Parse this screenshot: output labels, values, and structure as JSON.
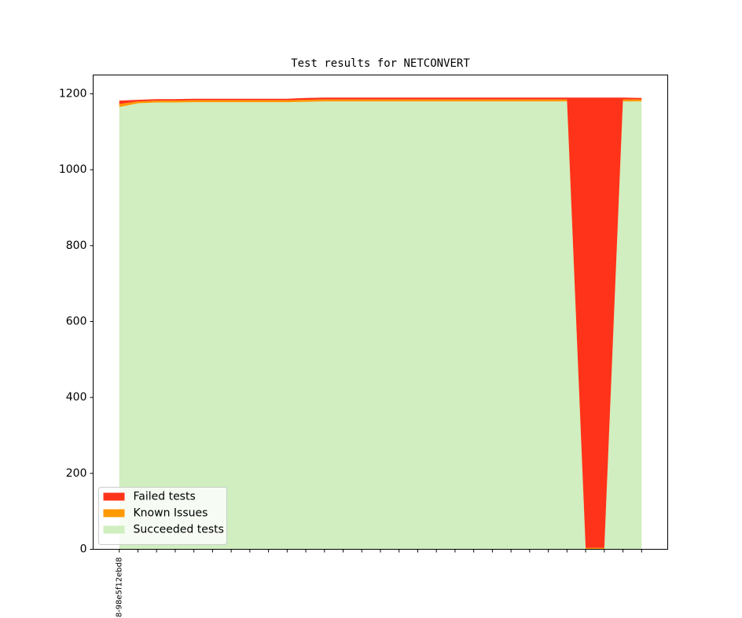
{
  "chart_data": {
    "type": "stacked_area",
    "title": "Test results for NETCONVERT",
    "categories": [
      "8-98e5f12ebd8",
      null,
      null,
      null,
      null,
      null,
      null,
      null,
      null,
      null,
      null,
      null,
      null,
      null,
      null,
      null,
      null,
      null,
      null,
      null,
      null,
      null,
      null,
      null,
      null,
      null,
      null,
      null,
      null
    ],
    "series": [
      {
        "name": "Succeeded tests",
        "color": "#d0eec0",
        "values": [
          1165,
          1175,
          1177,
          1177,
          1178,
          1178,
          1178,
          1178,
          1178,
          1178,
          1179,
          1180,
          1180,
          1180,
          1180,
          1180,
          1180,
          1180,
          1180,
          1180,
          1180,
          1180,
          1180,
          1180,
          1180,
          0,
          0,
          1180,
          1180
        ]
      },
      {
        "name": "Known Issues",
        "color": "#ff9900",
        "values": [
          8,
          5,
          5,
          5,
          5,
          5,
          5,
          5,
          5,
          5,
          5,
          5,
          5,
          5,
          5,
          5,
          5,
          5,
          5,
          5,
          5,
          5,
          5,
          5,
          5,
          4,
          4,
          5,
          5
        ]
      },
      {
        "name": "Failed tests",
        "color": "#ff3319",
        "values": [
          9,
          4,
          4,
          4,
          4,
          4,
          4,
          4,
          4,
          4,
          5,
          5,
          5,
          5,
          5,
          5,
          5,
          5,
          5,
          5,
          5,
          5,
          5,
          5,
          5,
          1186,
          1186,
          5,
          4
        ]
      }
    ],
    "ylim": [
      0,
      1249.5
    ],
    "yticks": [
      0,
      200,
      400,
      600,
      800,
      1000,
      1200
    ],
    "legend": "lower left"
  }
}
